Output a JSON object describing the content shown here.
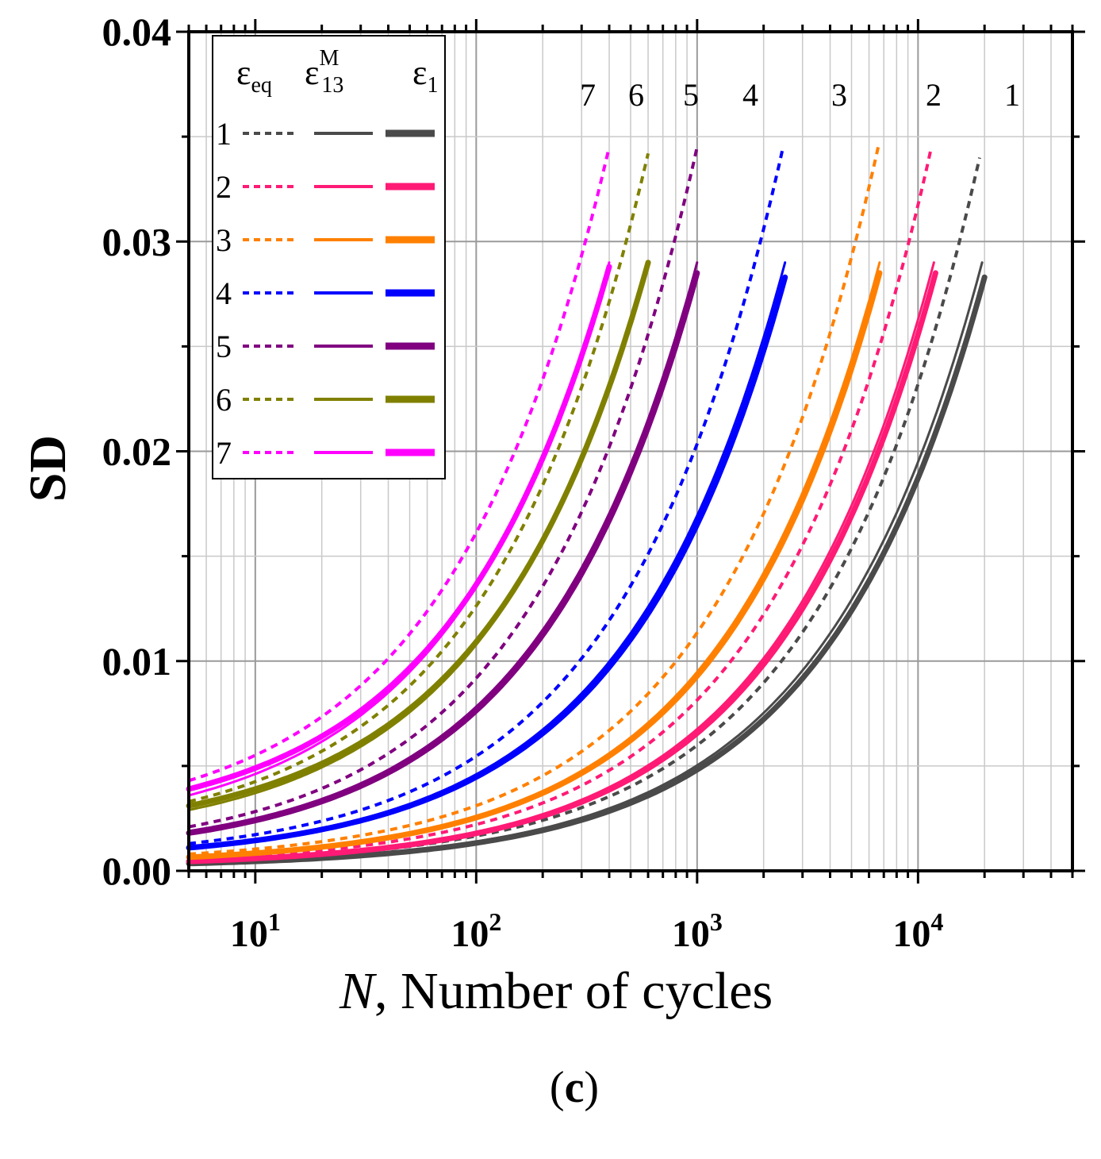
{
  "chart_data": {
    "type": "line",
    "xscale": "log",
    "xlim": [
      5,
      50000
    ],
    "ylim": [
      0,
      0.04
    ],
    "ylabel": "SD",
    "xlabel": {
      "symbol": "N",
      "text": ", Number of cycles"
    },
    "caption": {
      "open": "(",
      "letter": "c",
      "close": ")"
    },
    "yticks": [
      "0.00",
      "0.01",
      "0.02",
      "0.03",
      "0.04"
    ],
    "xticks": [
      {
        "base": "10",
        "exp": "1"
      },
      {
        "base": "10",
        "exp": "2"
      },
      {
        "base": "10",
        "exp": "3"
      },
      {
        "base": "10",
        "exp": "4"
      }
    ],
    "grid": true,
    "legend": {
      "placement": "top-left",
      "headers": [
        {
          "main": "ε",
          "sub": "eq",
          "sup": ""
        },
        {
          "main": "ε",
          "sub": "13",
          "sup": "M"
        },
        {
          "main": "ε",
          "sub": "1",
          "sup": ""
        }
      ],
      "rows": [
        "1",
        "2",
        "3",
        "4",
        "5",
        "6",
        "7"
      ]
    },
    "curve_labels": [
      "7",
      "6",
      "5",
      "4",
      "3",
      "2",
      "1"
    ],
    "series": [
      {
        "name": "1",
        "color": "#4a4a4a",
        "Nf": 20000,
        "eps_eq": {
          "y0": 0.00045,
          "y_end": 0.034,
          "Nend": 19000
        },
        "eps_13M": {
          "y0": 0.00038,
          "y_end": 0.029,
          "Nend": 19500
        },
        "eps_1": {
          "y0": 0.00035,
          "y_end": 0.0283,
          "Nend": 20000
        }
      },
      {
        "name": "2",
        "color": "#ff1a75",
        "Nf": 12000,
        "eps_eq": {
          "y0": 0.00055,
          "y_end": 0.0345,
          "Nend": 11500
        },
        "eps_13M": {
          "y0": 0.00048,
          "y_end": 0.029,
          "Nend": 11800
        },
        "eps_1": {
          "y0": 0.00045,
          "y_end": 0.0285,
          "Nend": 12000
        }
      },
      {
        "name": "3",
        "color": "#ff8000",
        "Nf": 6700,
        "eps_eq": {
          "y0": 0.0008,
          "y_end": 0.0345,
          "Nend": 6600
        },
        "eps_13M": {
          "y0": 0.0007,
          "y_end": 0.029,
          "Nend": 6700
        },
        "eps_1": {
          "y0": 0.00065,
          "y_end": 0.0285,
          "Nend": 6700
        }
      },
      {
        "name": "4",
        "color": "#0000ff",
        "Nf": 2500,
        "eps_eq": {
          "y0": 0.0013,
          "y_end": 0.0345,
          "Nend": 2450
        },
        "eps_13M": {
          "y0": 0.00115,
          "y_end": 0.029,
          "Nend": 2500
        },
        "eps_1": {
          "y0": 0.0011,
          "y_end": 0.0283,
          "Nend": 2500
        }
      },
      {
        "name": "5",
        "color": "#800080",
        "Nf": 1000,
        "eps_eq": {
          "y0": 0.0021,
          "y_end": 0.0345,
          "Nend": 1000
        },
        "eps_13M": {
          "y0": 0.0019,
          "y_end": 0.029,
          "Nend": 1000
        },
        "eps_1": {
          "y0": 0.0018,
          "y_end": 0.0285,
          "Nend": 1000
        }
      },
      {
        "name": "6",
        "color": "#808000",
        "Nf": 600,
        "eps_eq": {
          "y0": 0.0033,
          "y_end": 0.0342,
          "Nend": 600
        },
        "eps_13M": {
          "y0": 0.0029,
          "y_end": 0.029,
          "Nend": 600
        },
        "eps_1": {
          "y0": 0.0031,
          "y_end": 0.029,
          "Nend": 600
        }
      },
      {
        "name": "7",
        "color": "#ff00ff",
        "Nf": 400,
        "eps_eq": {
          "y0": 0.0043,
          "y_end": 0.0345,
          "Nend": 400
        },
        "eps_13M": {
          "y0": 0.0036,
          "y_end": 0.029,
          "Nend": 400
        },
        "eps_1": {
          "y0": 0.0039,
          "y_end": 0.0288,
          "Nend": 400
        }
      }
    ]
  }
}
